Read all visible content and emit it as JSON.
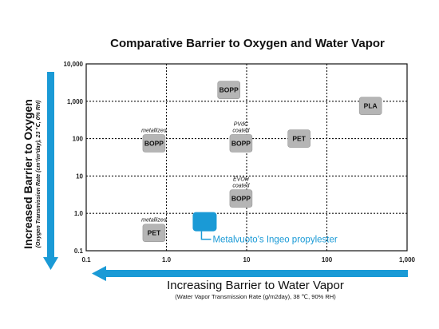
{
  "chart_data": {
    "type": "scatter",
    "title": "Comparative Barrier to Oxygen and Water Vapor",
    "xlabel": "Increasing Barrier to Water Vapor",
    "xlabel_sub": "(Water Vapor Transmission Rate (g/m2day), 38 ℃, 90% RH)",
    "ylabel": "Increased Barrier to Oxygen",
    "ylabel_sub": "(Oxygen Transmission Rate (cm³/m²day), 23 ℃, 0% RH)",
    "x_scale": "log",
    "y_scale": "log",
    "xlim": [
      0.1,
      1000
    ],
    "ylim": [
      0.1,
      10000
    ],
    "x_ticks": [
      "0.1",
      "1.0",
      "10",
      "100",
      "1,000"
    ],
    "y_ticks": [
      "0.1",
      "1.0",
      "10",
      "100",
      "1,000",
      "10,000"
    ],
    "grid": true,
    "points": [
      {
        "label": "BOPP",
        "x": 6,
        "y": 2000,
        "note": ""
      },
      {
        "label": "PLA",
        "x": 350,
        "y": 750,
        "note": ""
      },
      {
        "label": "BOPP",
        "x": 0.7,
        "y": 75,
        "note": "metallized"
      },
      {
        "label": "BOPP",
        "x": 8.5,
        "y": 75,
        "note": "PVdC\ncoated"
      },
      {
        "label": "PET",
        "x": 45,
        "y": 100,
        "note": ""
      },
      {
        "label": "BOPP",
        "x": 8.5,
        "y": 2.5,
        "note": "EVOH\ncoated"
      },
      {
        "label": "PET",
        "x": 0.7,
        "y": 0.3,
        "note": "metallized"
      },
      {
        "label": "",
        "x": 3,
        "y": 0.6,
        "note": "",
        "highlight": true
      }
    ],
    "callout": "Metalvuoto's Ingeo propylester",
    "colors": {
      "highlight": "#1a9ad6",
      "box": "#b5b5b5",
      "arrow": "#1a9ad6"
    }
  }
}
